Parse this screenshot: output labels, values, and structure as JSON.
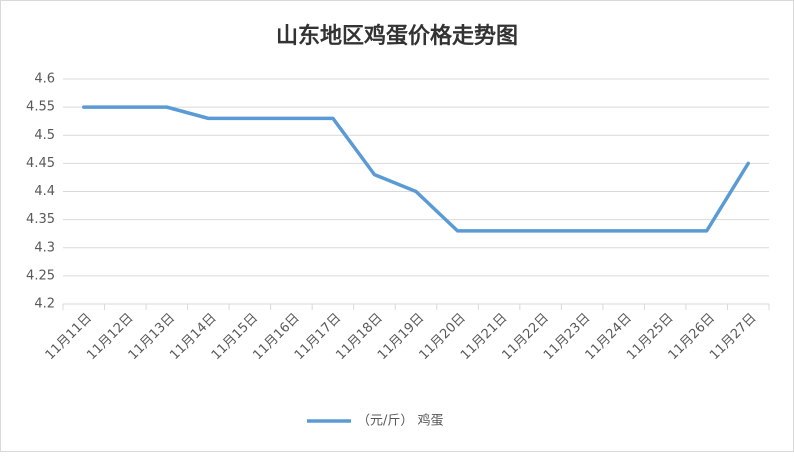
{
  "chart_data": {
    "type": "line",
    "title": "山东地区鸡蛋价格走势图",
    "categories": [
      "11月11日",
      "11月12日",
      "11月13日",
      "11月14日",
      "11月15日",
      "11月16日",
      "11月17日",
      "11月18日",
      "11月19日",
      "11月20日",
      "11月21日",
      "11月22日",
      "11月23日",
      "11月24日",
      "11月25日",
      "11月26日",
      "11月27日"
    ],
    "series": [
      {
        "name": "（元/斤） 鸡蛋",
        "color": "#5b9bd5",
        "values": [
          4.55,
          4.55,
          4.55,
          4.53,
          4.53,
          4.53,
          4.53,
          4.43,
          4.4,
          4.33,
          4.33,
          4.33,
          4.33,
          4.33,
          4.33,
          4.33,
          4.45
        ]
      }
    ],
    "ylim": [
      4.2,
      4.6
    ],
    "yticks": [
      4.2,
      4.25,
      4.3,
      4.35,
      4.4,
      4.45,
      4.5,
      4.55,
      4.6
    ],
    "grid": true,
    "legend": "bottom"
  }
}
